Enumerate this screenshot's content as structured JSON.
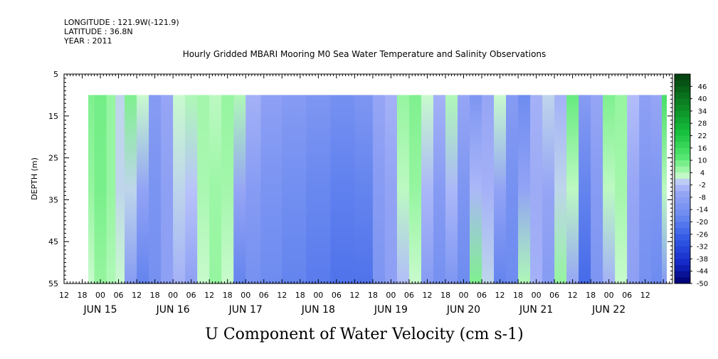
{
  "header": {
    "longitude": "LONGITUDE : 121.9W(-121.9)",
    "latitude": "LATITUDE : 36.8N",
    "year": "YEAR : 2011",
    "title": "Hourly Gridded MBARI Mooring M0 Sea Water Temperature and Salinity Observations"
  },
  "chart_data": {
    "type": "heatmap",
    "title": "U Component of Water Velocity (cm s-1)",
    "ylabel": "DEPTH (m)",
    "xlabel": "",
    "y_inverted": true,
    "ylim": [
      5,
      55
    ],
    "yticks": [
      "5",
      "15",
      "25",
      "35",
      "45",
      "55"
    ],
    "data_depth_range": [
      10,
      55
    ],
    "x_hour_range": [
      -12,
      189
    ],
    "data_hour_range": [
      -4,
      187
    ],
    "hour_tick_labels": [
      "12",
      "18",
      "00",
      "06",
      "12",
      "18",
      "00",
      "06",
      "12",
      "18",
      "00",
      "06",
      "12",
      "18",
      "00",
      "06",
      "12",
      "18",
      "00",
      "06",
      "12",
      "18",
      "00",
      "06",
      "12",
      "18",
      "00",
      "06",
      "12",
      "18",
      "00",
      "06",
      "12"
    ],
    "date_labels": [
      "JUN 15",
      "JUN 16",
      "JUN 17",
      "JUN 18",
      "JUN 19",
      "JUN 20",
      "JUN 21",
      "JUN 22"
    ],
    "date_label_hours": [
      0,
      24,
      48,
      72,
      96,
      120,
      144,
      168
    ],
    "colorbar": {
      "levels": [
        "46",
        "40",
        "34",
        "28",
        "22",
        "16",
        "10",
        "4",
        "-2",
        "-8",
        "-14",
        "-20",
        "-26",
        "-32",
        "-38",
        "-44",
        "-50"
      ],
      "min": -50,
      "max": 52
    },
    "columns": [
      {
        "h": -4,
        "top": 8,
        "bottom": 2
      },
      {
        "h": 0,
        "top": 9,
        "bottom": 6
      },
      {
        "h": 4,
        "top": 6,
        "bottom": 4
      },
      {
        "h": 6,
        "top": 0,
        "bottom": 2
      },
      {
        "h": 10,
        "top": 8,
        "bottom": -10
      },
      {
        "h": 14,
        "top": 2,
        "bottom": -18
      },
      {
        "h": 18,
        "top": -10,
        "bottom": -14
      },
      {
        "h": 22,
        "top": -6,
        "bottom": -8
      },
      {
        "h": 26,
        "top": 2,
        "bottom": -4
      },
      {
        "h": 30,
        "top": 4,
        "bottom": -8
      },
      {
        "h": 34,
        "top": 5,
        "bottom": 2
      },
      {
        "h": 38,
        "top": 3,
        "bottom": 6
      },
      {
        "h": 42,
        "top": 6,
        "bottom": 2
      },
      {
        "h": 46,
        "top": 4,
        "bottom": -18
      },
      {
        "h": 50,
        "top": -4,
        "bottom": -14
      },
      {
        "h": 56,
        "top": -8,
        "bottom": -16
      },
      {
        "h": 64,
        "top": -10,
        "bottom": -18
      },
      {
        "h": 72,
        "top": -12,
        "bottom": -20
      },
      {
        "h": 80,
        "top": -14,
        "bottom": -22
      },
      {
        "h": 88,
        "top": -12,
        "bottom": -22
      },
      {
        "h": 92,
        "top": -6,
        "bottom": -12
      },
      {
        "h": 96,
        "top": -4,
        "bottom": -8
      },
      {
        "h": 100,
        "top": 6,
        "bottom": -2
      },
      {
        "h": 104,
        "top": 8,
        "bottom": 2
      },
      {
        "h": 108,
        "top": 2,
        "bottom": -10
      },
      {
        "h": 112,
        "top": -4,
        "bottom": -14
      },
      {
        "h": 116,
        "top": 4,
        "bottom": -12
      },
      {
        "h": 120,
        "top": -6,
        "bottom": -16
      },
      {
        "h": 124,
        "top": -12,
        "bottom": 8
      },
      {
        "h": 128,
        "top": -6,
        "bottom": 0
      },
      {
        "h": 132,
        "top": 2,
        "bottom": -18
      },
      {
        "h": 136,
        "top": -10,
        "bottom": -16
      },
      {
        "h": 140,
        "top": -16,
        "bottom": 4
      },
      {
        "h": 144,
        "top": -4,
        "bottom": -4
      },
      {
        "h": 148,
        "top": 0,
        "bottom": -10
      },
      {
        "h": 152,
        "top": -4,
        "bottom": 6
      },
      {
        "h": 156,
        "top": 10,
        "bottom": -6
      },
      {
        "h": 160,
        "top": -10,
        "bottom": -24
      },
      {
        "h": 164,
        "top": -6,
        "bottom": -12
      },
      {
        "h": 168,
        "top": 8,
        "bottom": -4
      },
      {
        "h": 172,
        "top": 6,
        "bottom": 2
      },
      {
        "h": 176,
        "top": -2,
        "bottom": -8
      },
      {
        "h": 180,
        "top": -8,
        "bottom": -14
      },
      {
        "h": 184,
        "top": -6,
        "bottom": -16
      },
      {
        "h": 187,
        "top": 14,
        "bottom": -10
      }
    ]
  }
}
